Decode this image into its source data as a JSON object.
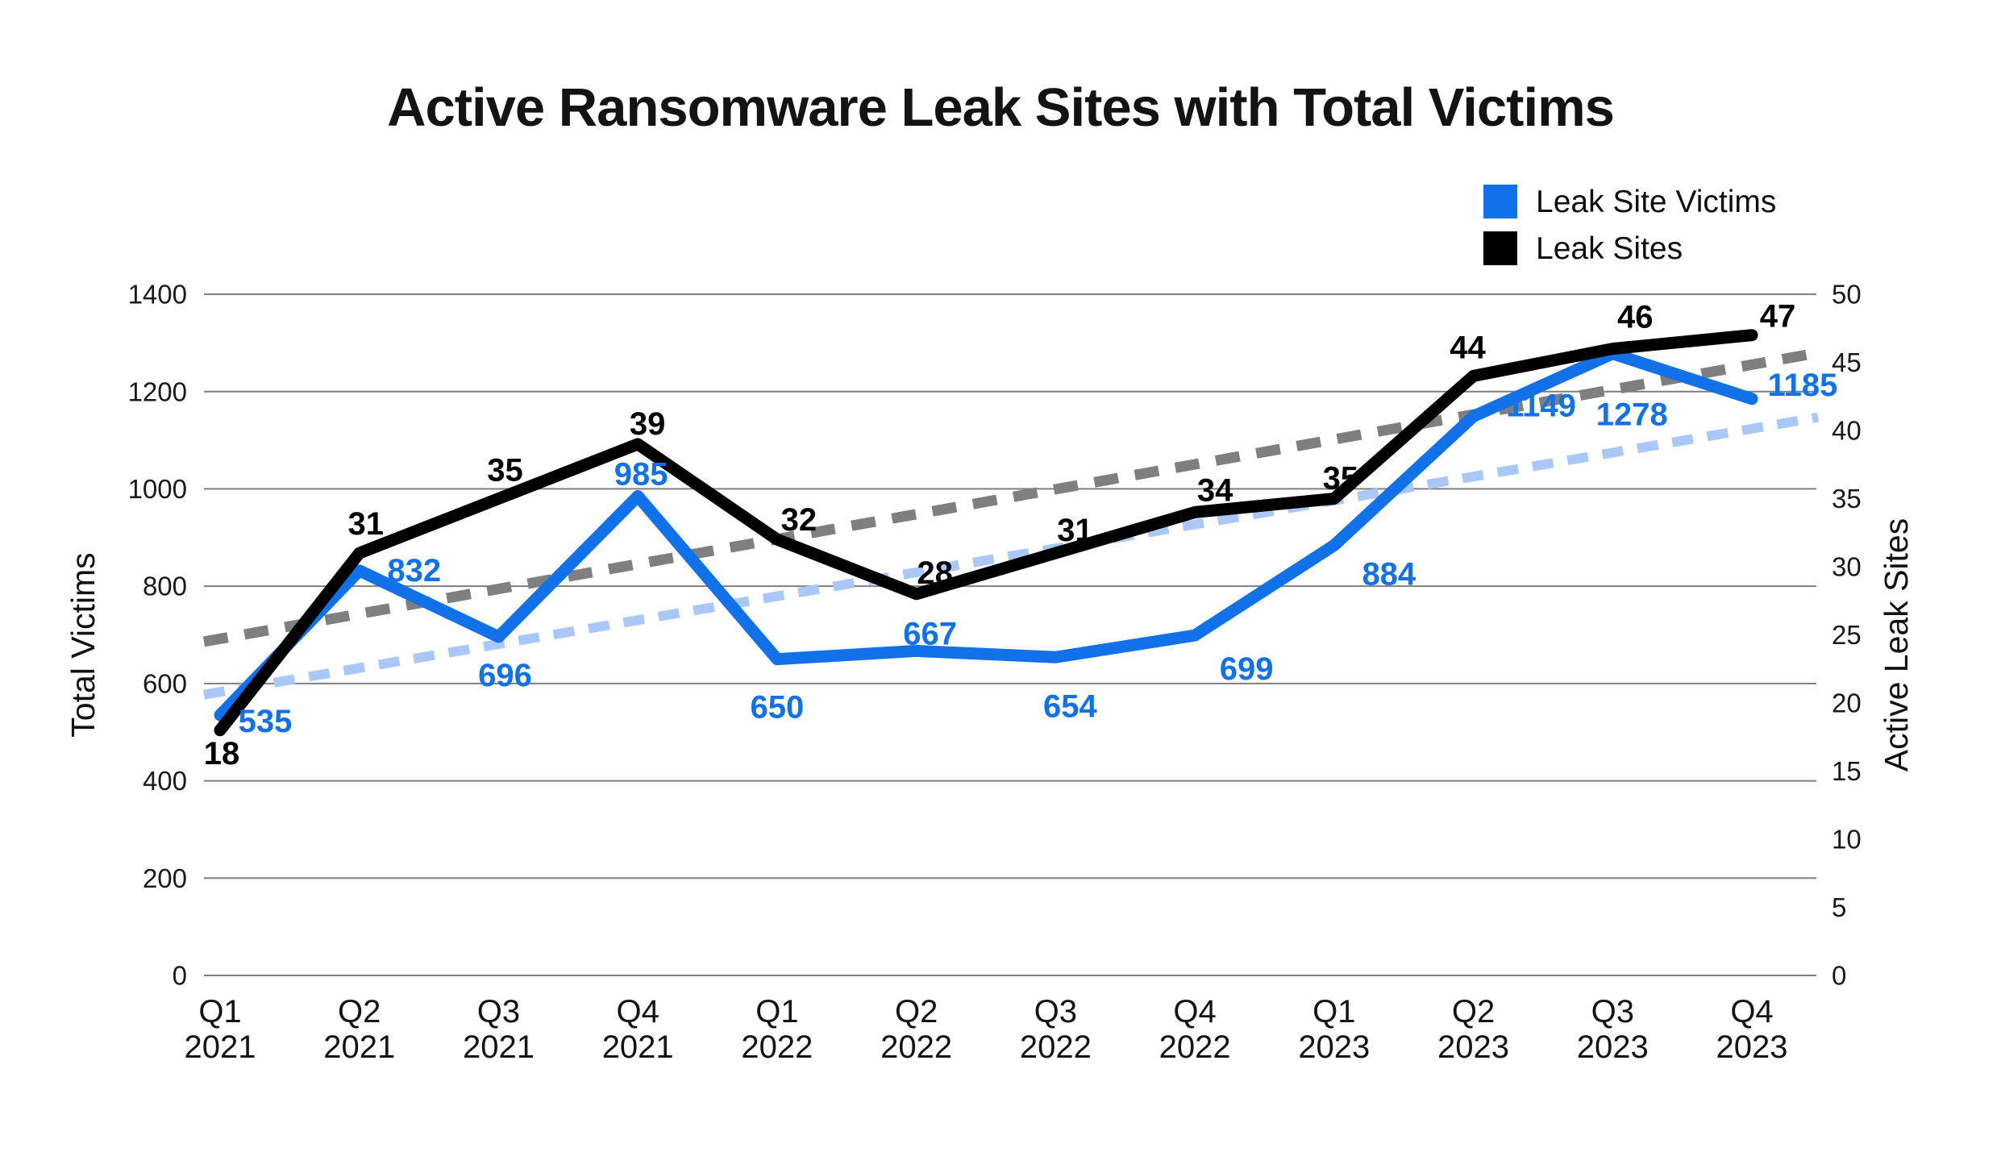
{
  "title": "Active Ransomware Leak Sites with Total Victims",
  "legend": {
    "items": [
      {
        "label": "Leak Site Victims",
        "color": "#1171E8"
      },
      {
        "label": "Leak Sites",
        "color": "#000000"
      }
    ]
  },
  "chart_data": {
    "type": "line",
    "title": "Active Ransomware Leak Sites with Total Victims",
    "categories": [
      {
        "quarter": "Q1",
        "year": "2021"
      },
      {
        "quarter": "Q2",
        "year": "2021"
      },
      {
        "quarter": "Q3",
        "year": "2021"
      },
      {
        "quarter": "Q4",
        "year": "2021"
      },
      {
        "quarter": "Q1",
        "year": "2022"
      },
      {
        "quarter": "Q2",
        "year": "2022"
      },
      {
        "quarter": "Q3",
        "year": "2022"
      },
      {
        "quarter": "Q4",
        "year": "2022"
      },
      {
        "quarter": "Q1",
        "year": "2023"
      },
      {
        "quarter": "Q2",
        "year": "2023"
      },
      {
        "quarter": "Q3",
        "year": "2023"
      },
      {
        "quarter": "Q4",
        "year": "2023"
      }
    ],
    "series": [
      {
        "name": "Leak Site Victims",
        "axis": "left",
        "color": "#1171E8",
        "style": "solid",
        "values": [
          535,
          832,
          696,
          985,
          650,
          667,
          654,
          699,
          884,
          1149,
          1278,
          1185
        ]
      },
      {
        "name": "Leak Sites",
        "axis": "right",
        "color": "#000000",
        "style": "solid",
        "values": [
          18,
          31,
          35,
          39,
          32,
          28,
          31,
          34,
          35,
          44,
          46,
          47
        ]
      }
    ],
    "trendlines": [
      {
        "for": "Leak Site Victims",
        "axis": "left",
        "color": "#A9C8F8",
        "style": "dashed",
        "start_value": 577,
        "end_value": 1147
      },
      {
        "for": "Leak Sites",
        "axis": "right",
        "color": "#7F7F7F",
        "style": "dashed",
        "start_value": 24.5,
        "end_value": 45.7
      }
    ],
    "axes": {
      "left": {
        "label": "Total Victims",
        "min": 0,
        "max": 1400,
        "step": 200
      },
      "right": {
        "label": "Active Leak Sites",
        "min": 0,
        "max": 50,
        "step": 5
      }
    },
    "grid": true,
    "legend_position": "top-right"
  }
}
